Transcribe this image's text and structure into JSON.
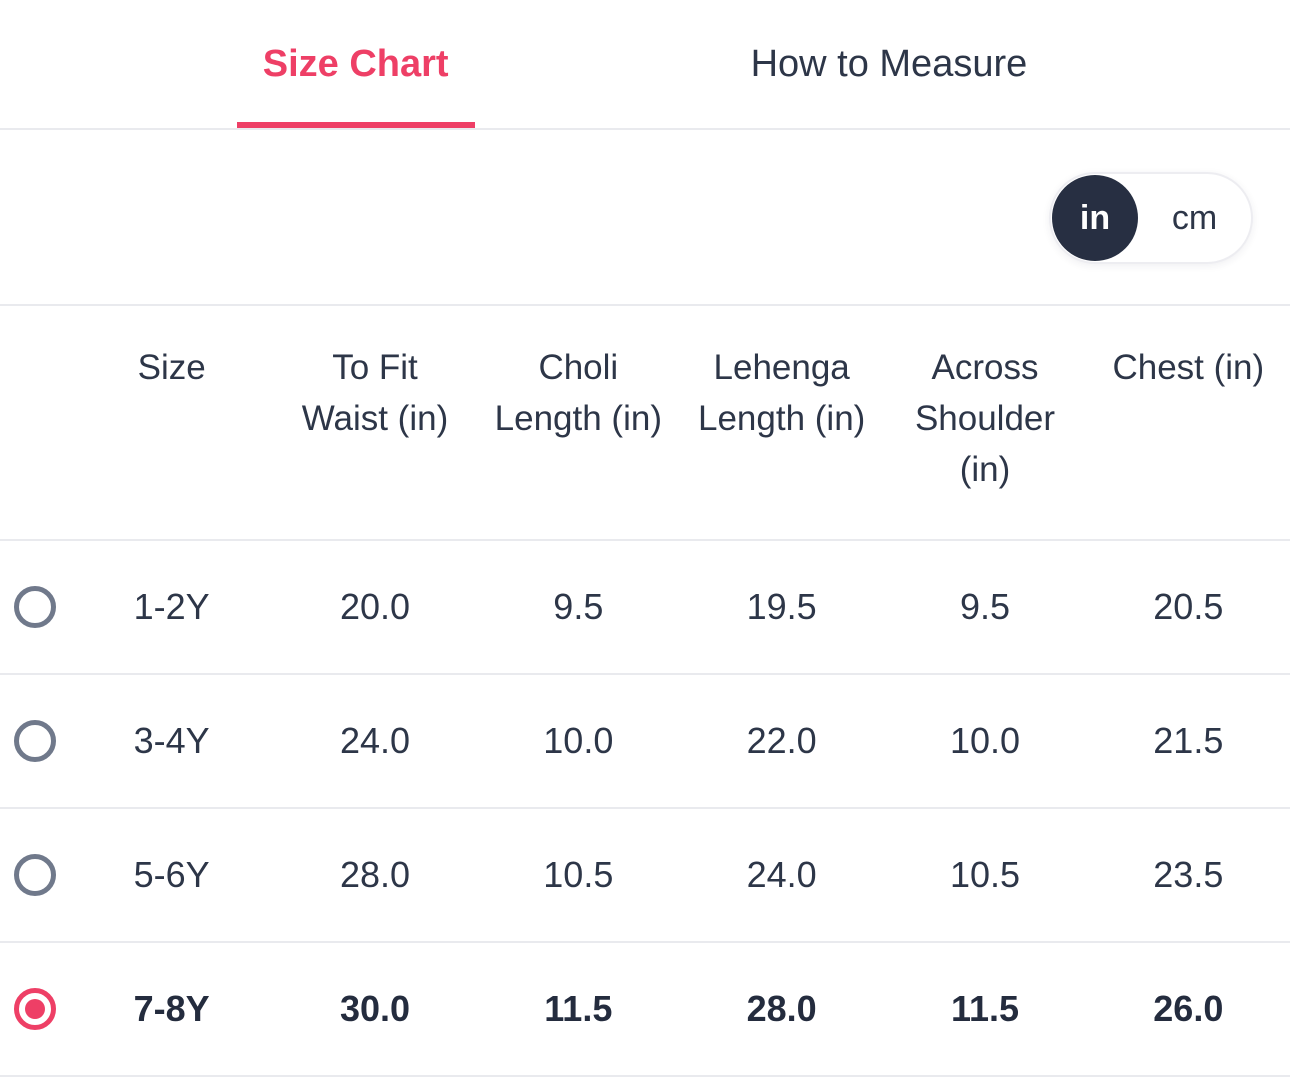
{
  "colors": {
    "accent_pink": "#ee3f66",
    "text_navy": "#2d3648",
    "toggle_circle_navy": "#272f42",
    "divider_gray": "#e9eaee",
    "radio_ring_gray": "#70798b"
  },
  "tabs": [
    {
      "label": "Size Chart",
      "active": true
    },
    {
      "label": "How to Measure",
      "active": false
    }
  ],
  "unit_toggle": {
    "selected": "in",
    "options": [
      {
        "label": "in",
        "selected": true
      },
      {
        "label": "cm",
        "selected": false
      }
    ]
  },
  "size_chart": {
    "headers": [
      {
        "label": "Size",
        "lines": [
          "Size"
        ]
      },
      {
        "label": "To Fit Waist (in)",
        "lines": [
          "To Fit",
          "Waist (in)"
        ]
      },
      {
        "label": "Choli Length (in)",
        "lines": [
          "Choli",
          "Length (in)"
        ]
      },
      {
        "label": "Lehenga Length (in)",
        "lines": [
          "Lehenga",
          "Length (in)"
        ]
      },
      {
        "label": "Across Shoulder (in)",
        "lines": [
          "Across",
          "Shoulder",
          "(in)"
        ]
      },
      {
        "label": "Chest (in)",
        "lines": [
          "Chest (in)"
        ]
      }
    ],
    "rows": [
      {
        "size": "1-2Y",
        "selected": false,
        "values": [
          "20.0",
          "9.5",
          "19.5",
          "9.5",
          "20.5"
        ]
      },
      {
        "size": "3-4Y",
        "selected": false,
        "values": [
          "24.0",
          "10.0",
          "22.0",
          "10.0",
          "21.5"
        ]
      },
      {
        "size": "5-6Y",
        "selected": false,
        "values": [
          "28.0",
          "10.5",
          "24.0",
          "10.5",
          "23.5"
        ]
      },
      {
        "size": "7-8Y",
        "selected": true,
        "values": [
          "30.0",
          "11.5",
          "28.0",
          "11.5",
          "26.0"
        ]
      }
    ]
  }
}
